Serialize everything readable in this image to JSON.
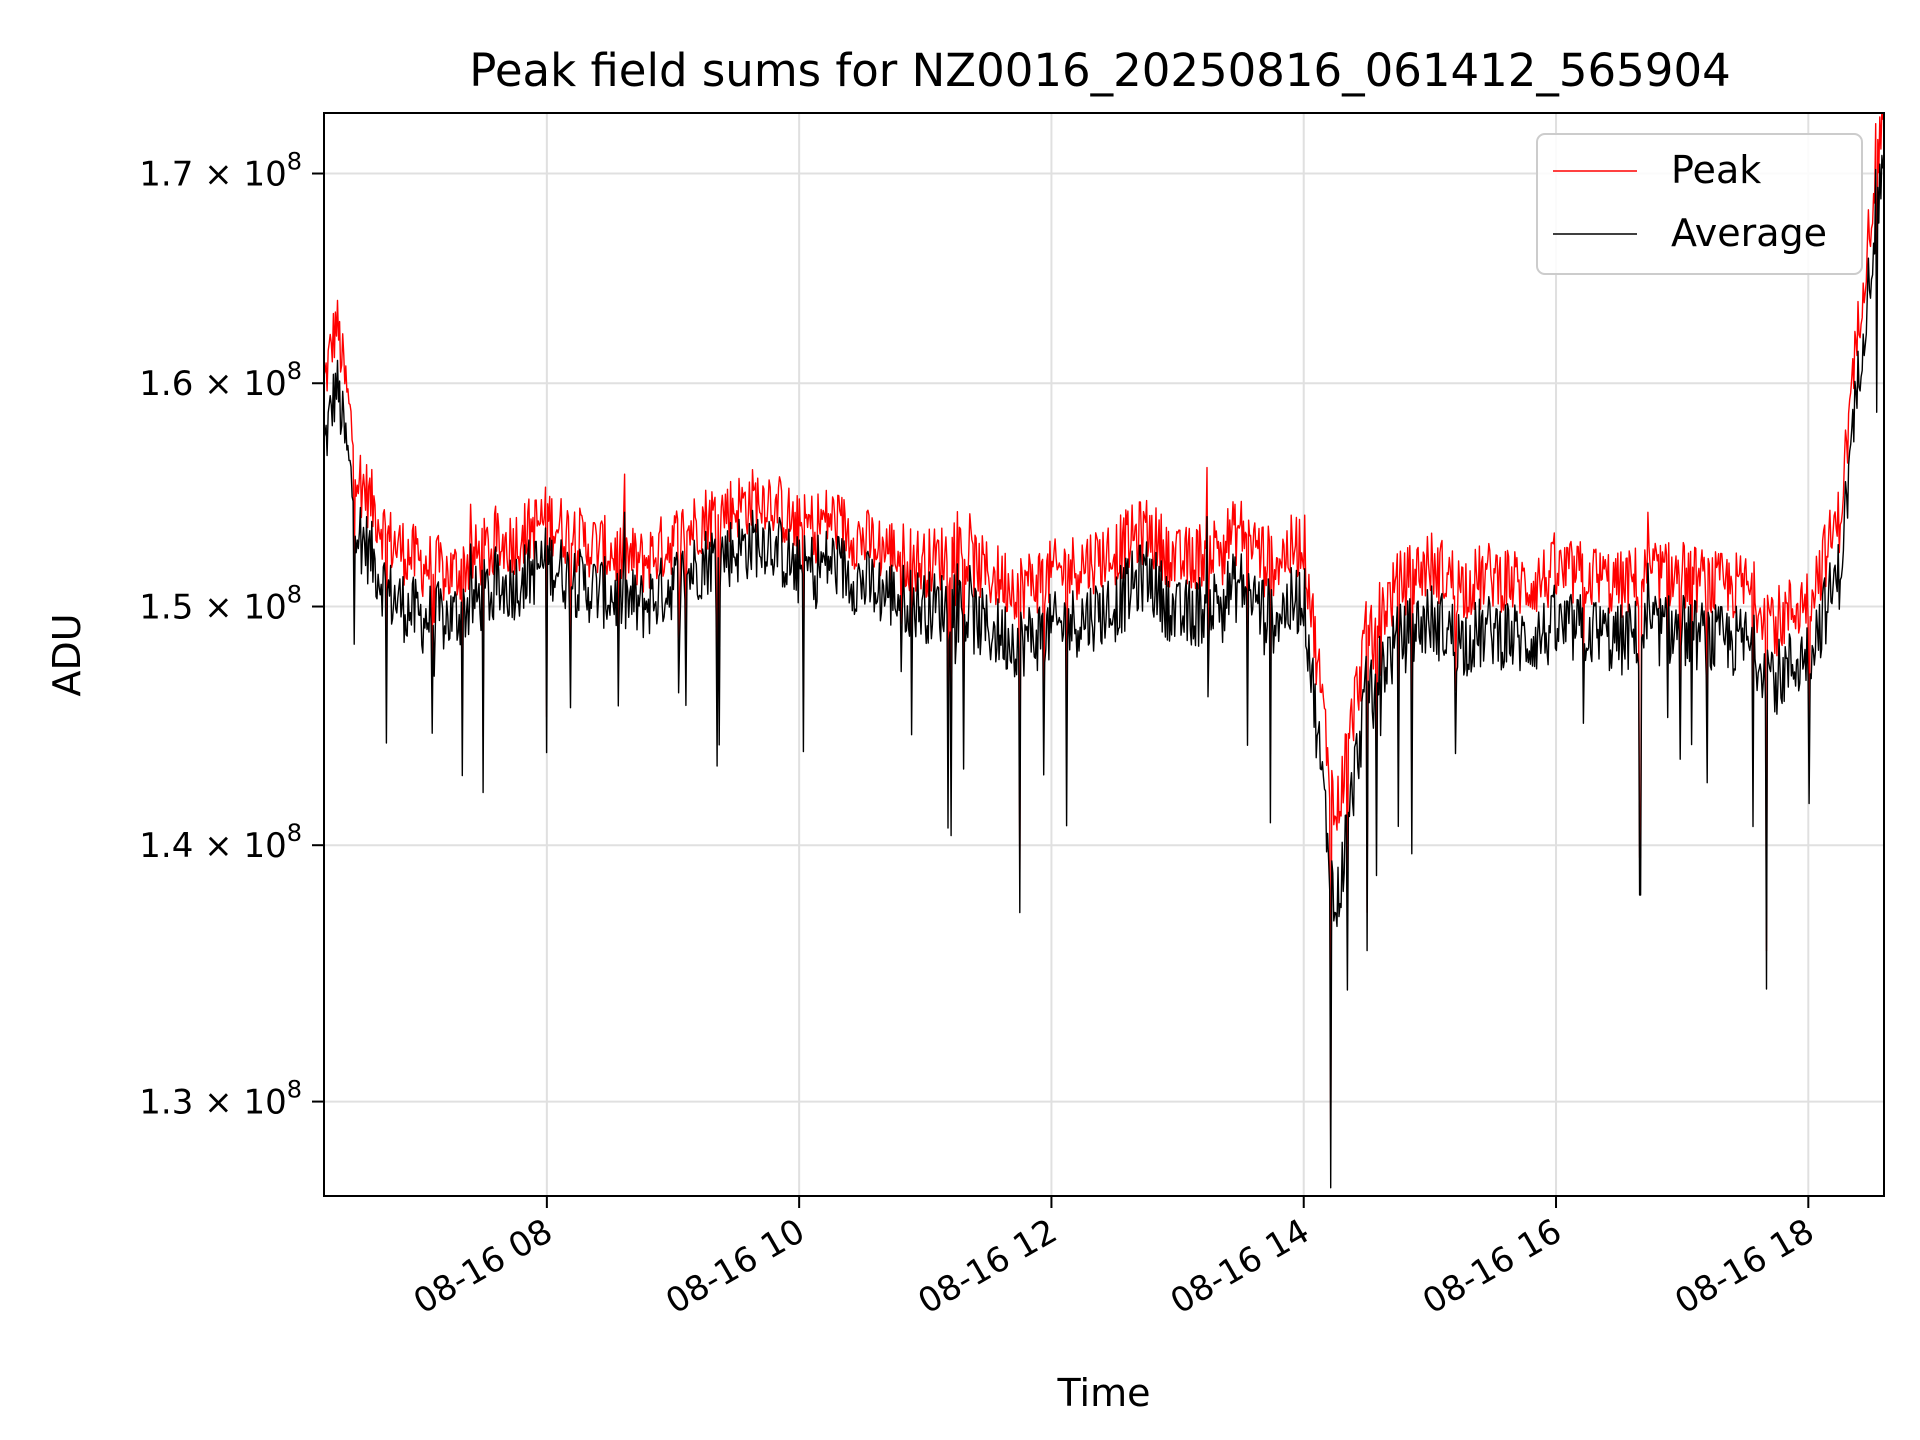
{
  "chart_data": {
    "type": "line",
    "title": "Peak field sums for NZ0016_20250816_061412_565904",
    "xlabel": "Time",
    "ylabel": "ADU",
    "y_scale": "log",
    "xlim": [
      "2025-08-16T06:14",
      "2025-08-16T18:36"
    ],
    "ylim": [
      126500000,
      173000000
    ],
    "grid": true,
    "legend_position": "top-right",
    "x_ticks": [
      {
        "value": "2025-08-16T08:00",
        "label": "08-16 08"
      },
      {
        "value": "2025-08-16T10:00",
        "label": "08-16 10"
      },
      {
        "value": "2025-08-16T12:00",
        "label": "08-16 12"
      },
      {
        "value": "2025-08-16T14:00",
        "label": "08-16 14"
      },
      {
        "value": "2025-08-16T16:00",
        "label": "08-16 16"
      },
      {
        "value": "2025-08-16T18:00",
        "label": "08-16 18"
      }
    ],
    "y_ticks": [
      {
        "value": 130000000,
        "mantissa": "1.3",
        "exp": "8"
      },
      {
        "value": 140000000,
        "mantissa": "1.4",
        "exp": "8"
      },
      {
        "value": 150000000,
        "mantissa": "1.5",
        "exp": "8"
      },
      {
        "value": 160000000,
        "mantissa": "1.6",
        "exp": "8"
      },
      {
        "value": 170000000,
        "mantissa": "1.7",
        "exp": "8"
      }
    ],
    "series": [
      {
        "name": "Peak",
        "color": "#ff0000",
        "points": [
          [
            "2025-08-16T06:14",
            159000000
          ],
          [
            "2025-08-16T06:20",
            162000000
          ],
          [
            "2025-08-16T06:30",
            155000000
          ],
          [
            "2025-08-16T06:45",
            152000000
          ],
          [
            "2025-08-16T07:00",
            151000000
          ],
          [
            "2025-08-16T07:15",
            150500000
          ],
          [
            "2025-08-16T07:30",
            151500000
          ],
          [
            "2025-08-16T07:45",
            152000000
          ],
          [
            "2025-08-16T08:00",
            153000000
          ],
          [
            "2025-08-16T08:15",
            152000000
          ],
          [
            "2025-08-16T08:30",
            151500000
          ],
          [
            "2025-08-16T08:45",
            151000000
          ],
          [
            "2025-08-16T09:00",
            152000000
          ],
          [
            "2025-08-16T09:15",
            153000000
          ],
          [
            "2025-08-16T09:30",
            153500000
          ],
          [
            "2025-08-16T09:45",
            154000000
          ],
          [
            "2025-08-16T10:00",
            152500000
          ],
          [
            "2025-08-16T10:15",
            153000000
          ],
          [
            "2025-08-16T10:30",
            152000000
          ],
          [
            "2025-08-16T10:45",
            151500000
          ],
          [
            "2025-08-16T11:00",
            151000000
          ],
          [
            "2025-08-16T11:15",
            151500000
          ],
          [
            "2025-08-16T11:30",
            150500000
          ],
          [
            "2025-08-16T11:45",
            150000000
          ],
          [
            "2025-08-16T12:00",
            150500000
          ],
          [
            "2025-08-16T12:15",
            151000000
          ],
          [
            "2025-08-16T12:30",
            151500000
          ],
          [
            "2025-08-16T12:45",
            152500000
          ],
          [
            "2025-08-16T13:00",
            151000000
          ],
          [
            "2025-08-16T13:15",
            151500000
          ],
          [
            "2025-08-16T13:30",
            152500000
          ],
          [
            "2025-08-16T13:45",
            151000000
          ],
          [
            "2025-08-16T14:00",
            152000000
          ],
          [
            "2025-08-16T14:15",
            140000000
          ],
          [
            "2025-08-16T14:30",
            148000000
          ],
          [
            "2025-08-16T14:45",
            150000000
          ],
          [
            "2025-08-16T15:00",
            151000000
          ],
          [
            "2025-08-16T15:15",
            150000000
          ],
          [
            "2025-08-16T15:30",
            150500000
          ],
          [
            "2025-08-16T15:45",
            150000000
          ],
          [
            "2025-08-16T16:00",
            150500000
          ],
          [
            "2025-08-16T16:15",
            150500000
          ],
          [
            "2025-08-16T16:30",
            150000000
          ],
          [
            "2025-08-16T16:45",
            150500000
          ],
          [
            "2025-08-16T17:00",
            150500000
          ],
          [
            "2025-08-16T17:15",
            150000000
          ],
          [
            "2025-08-16T17:30",
            150000000
          ],
          [
            "2025-08-16T17:45",
            148500000
          ],
          [
            "2025-08-16T18:00",
            149500000
          ],
          [
            "2025-08-16T18:15",
            153000000
          ],
          [
            "2025-08-16T18:25",
            163000000
          ],
          [
            "2025-08-16T18:36",
            172500000
          ]
        ]
      },
      {
        "name": "Average",
        "color": "#000000",
        "points": [
          [
            "2025-08-16T06:14",
            157000000
          ],
          [
            "2025-08-16T06:20",
            160000000
          ],
          [
            "2025-08-16T06:30",
            153500000
          ],
          [
            "2025-08-16T06:45",
            150500000
          ],
          [
            "2025-08-16T07:00",
            149500000
          ],
          [
            "2025-08-16T07:15",
            149500000
          ],
          [
            "2025-08-16T07:30",
            150500000
          ],
          [
            "2025-08-16T07:45",
            151000000
          ],
          [
            "2025-08-16T08:00",
            152000000
          ],
          [
            "2025-08-16T08:15",
            151000000
          ],
          [
            "2025-08-16T08:30",
            150500000
          ],
          [
            "2025-08-16T08:45",
            150000000
          ],
          [
            "2025-08-16T09:00",
            151000000
          ],
          [
            "2025-08-16T09:15",
            152000000
          ],
          [
            "2025-08-16T09:30",
            152500000
          ],
          [
            "2025-08-16T09:45",
            153000000
          ],
          [
            "2025-08-16T10:00",
            151500000
          ],
          [
            "2025-08-16T10:15",
            152000000
          ],
          [
            "2025-08-16T10:30",
            151000000
          ],
          [
            "2025-08-16T10:45",
            150500000
          ],
          [
            "2025-08-16T11:00",
            150000000
          ],
          [
            "2025-08-16T11:15",
            150000000
          ],
          [
            "2025-08-16T11:30",
            149000000
          ],
          [
            "2025-08-16T11:45",
            148500000
          ],
          [
            "2025-08-16T12:00",
            149000000
          ],
          [
            "2025-08-16T12:15",
            149500000
          ],
          [
            "2025-08-16T12:30",
            150000000
          ],
          [
            "2025-08-16T12:45",
            151500000
          ],
          [
            "2025-08-16T13:00",
            149500000
          ],
          [
            "2025-08-16T13:15",
            150000000
          ],
          [
            "2025-08-16T13:30",
            151000000
          ],
          [
            "2025-08-16T13:45",
            149500000
          ],
          [
            "2025-08-16T14:00",
            150500000
          ],
          [
            "2025-08-16T14:15",
            137000000
          ],
          [
            "2025-08-16T14:30",
            146500000
          ],
          [
            "2025-08-16T14:45",
            148500000
          ],
          [
            "2025-08-16T15:00",
            149500000
          ],
          [
            "2025-08-16T15:15",
            148500000
          ],
          [
            "2025-08-16T15:30",
            149000000
          ],
          [
            "2025-08-16T15:45",
            148500000
          ],
          [
            "2025-08-16T16:00",
            149000000
          ],
          [
            "2025-08-16T16:15",
            149000000
          ],
          [
            "2025-08-16T16:30",
            148500000
          ],
          [
            "2025-08-16T16:45",
            149000000
          ],
          [
            "2025-08-16T17:00",
            149000000
          ],
          [
            "2025-08-16T17:15",
            148500000
          ],
          [
            "2025-08-16T17:30",
            148500000
          ],
          [
            "2025-08-16T17:45",
            147000000
          ],
          [
            "2025-08-16T18:00",
            148000000
          ],
          [
            "2025-08-16T18:15",
            151500000
          ],
          [
            "2025-08-16T18:25",
            161500000
          ],
          [
            "2025-08-16T18:36",
            171000000
          ]
        ]
      }
    ],
    "notable_dips": [
      {
        "x": "2025-08-16T08:00",
        "value": 143800000
      },
      {
        "x": "2025-08-16T11:45",
        "value": 137300000
      },
      {
        "x": "2025-08-16T14:13",
        "value": 126800000
      },
      {
        "x": "2025-08-16T14:30",
        "value": 135800000
      },
      {
        "x": "2025-08-16T16:40",
        "value": 138000000
      },
      {
        "x": "2025-08-16T17:40",
        "value": 134300000
      }
    ]
  }
}
